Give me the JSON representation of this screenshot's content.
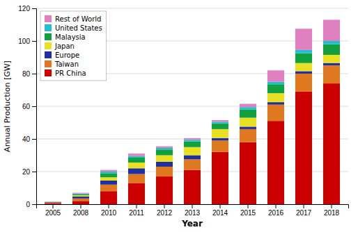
{
  "chart_data": {
    "type": "bar",
    "stacked": true,
    "xlabel": "Year",
    "ylabel": "Annual Production [GW]",
    "categories": [
      "2005",
      "2008",
      "2010",
      "2011",
      "2012",
      "2013",
      "2014",
      "2015",
      "2016",
      "2017",
      "2018"
    ],
    "series": [
      {
        "name": "Rest of World",
        "color": "#e080c0",
        "values": [
          0.1,
          0.5,
          1.0,
          1.5,
          1.0,
          1.0,
          1.0,
          2.0,
          7.0,
          13.0,
          13.0
        ]
      },
      {
        "name": "United States",
        "color": "#20c0d0",
        "values": [
          0.1,
          0.5,
          1.0,
          1.0,
          1.0,
          1.0,
          1.0,
          1.5,
          1.5,
          2.0,
          2.0
        ]
      },
      {
        "name": "Malaysia",
        "color": "#10a040",
        "values": [
          0.0,
          0.5,
          2.5,
          3.0,
          3.5,
          3.5,
          3.5,
          5.0,
          5.5,
          6.0,
          6.5
        ]
      },
      {
        "name": "Japan",
        "color": "#e8e020",
        "values": [
          0.3,
          0.8,
          2.0,
          3.5,
          4.0,
          5.0,
          5.5,
          5.5,
          5.5,
          5.0,
          5.0
        ]
      },
      {
        "name": "Europe",
        "color": "#2030a0",
        "values": [
          0.4,
          1.2,
          2.5,
          3.5,
          3.0,
          2.5,
          1.5,
          1.5,
          1.5,
          1.5,
          1.5
        ]
      },
      {
        "name": "Taiwan",
        "color": "#e07820",
        "values": [
          0.2,
          1.5,
          4.0,
          5.5,
          6.0,
          6.5,
          7.0,
          8.0,
          10.0,
          11.0,
          11.0
        ]
      },
      {
        "name": "PR China",
        "color": "#cc0000",
        "values": [
          0.6,
          2.0,
          8.0,
          13.0,
          17.0,
          21.0,
          32.0,
          38.0,
          51.0,
          69.0,
          74.0
        ]
      }
    ],
    "ylim": [
      0,
      120
    ],
    "yticks": [
      0,
      20,
      40,
      60,
      80,
      100,
      120
    ],
    "grid": true,
    "legend": "upper left"
  }
}
